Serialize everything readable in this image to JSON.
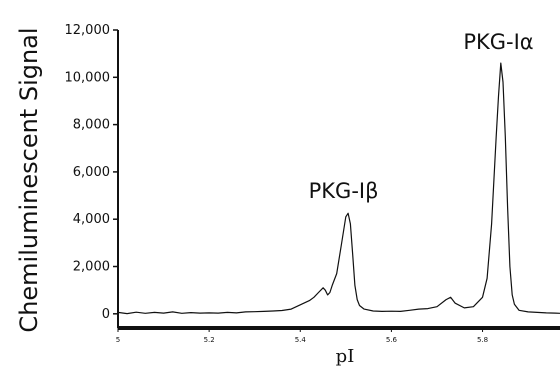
{
  "chart_data": {
    "type": "line",
    "ylabel": "Chemiluminescent  Signal",
    "xlabel": "pI",
    "xlim": [
      5.0,
      5.97
    ],
    "ylim": [
      -600,
      12000
    ],
    "yticks": [
      0,
      2000,
      4000,
      6000,
      8000,
      10000,
      12000
    ],
    "ytick_labels": [
      "0",
      "2,000",
      "4,000",
      "6,000",
      "8,000",
      "10,000",
      "12,000"
    ],
    "xticks": [
      5.0,
      5.2,
      5.4,
      5.6,
      5.8
    ],
    "xtick_labels": [
      "5",
      "5.2",
      "5.4",
      "5.6",
      "5.8"
    ],
    "grid": false,
    "series": [
      {
        "color": "#111111",
        "x": [
          5.0,
          5.02,
          5.04,
          5.06,
          5.08,
          5.1,
          5.12,
          5.14,
          5.16,
          5.18,
          5.2,
          5.22,
          5.24,
          5.26,
          5.28,
          5.3,
          5.32,
          5.34,
          5.36,
          5.38,
          5.4,
          5.42,
          5.43,
          5.44,
          5.45,
          5.455,
          5.46,
          5.465,
          5.47,
          5.48,
          5.49,
          5.5,
          5.505,
          5.51,
          5.515,
          5.52,
          5.525,
          5.53,
          5.54,
          5.56,
          5.58,
          5.6,
          5.62,
          5.64,
          5.66,
          5.68,
          5.7,
          5.72,
          5.73,
          5.74,
          5.76,
          5.78,
          5.8,
          5.81,
          5.82,
          5.83,
          5.835,
          5.84,
          5.845,
          5.85,
          5.855,
          5.86,
          5.865,
          5.87,
          5.88,
          5.9,
          5.92,
          5.94,
          5.96,
          5.97
        ],
        "y": [
          60,
          10,
          70,
          20,
          60,
          30,
          80,
          20,
          50,
          30,
          40,
          30,
          60,
          40,
          80,
          90,
          100,
          120,
          140,
          200,
          380,
          560,
          700,
          900,
          1100,
          1000,
          800,
          900,
          1200,
          1700,
          2900,
          4100,
          4250,
          3800,
          2500,
          1200,
          600,
          350,
          200,
          120,
          100,
          110,
          100,
          150,
          200,
          220,
          300,
          600,
          700,
          450,
          250,
          300,
          700,
          1500,
          3800,
          7500,
          9200,
          10600,
          9800,
          7500,
          4500,
          2000,
          800,
          400,
          150,
          80,
          60,
          40,
          30,
          20
        ]
      }
    ],
    "annotations": [
      {
        "text": "PKG-Iβ",
        "x": 5.495,
        "y": 4900
      },
      {
        "text": "PKG-Iα",
        "x": 5.835,
        "y": 11200
      }
    ]
  }
}
